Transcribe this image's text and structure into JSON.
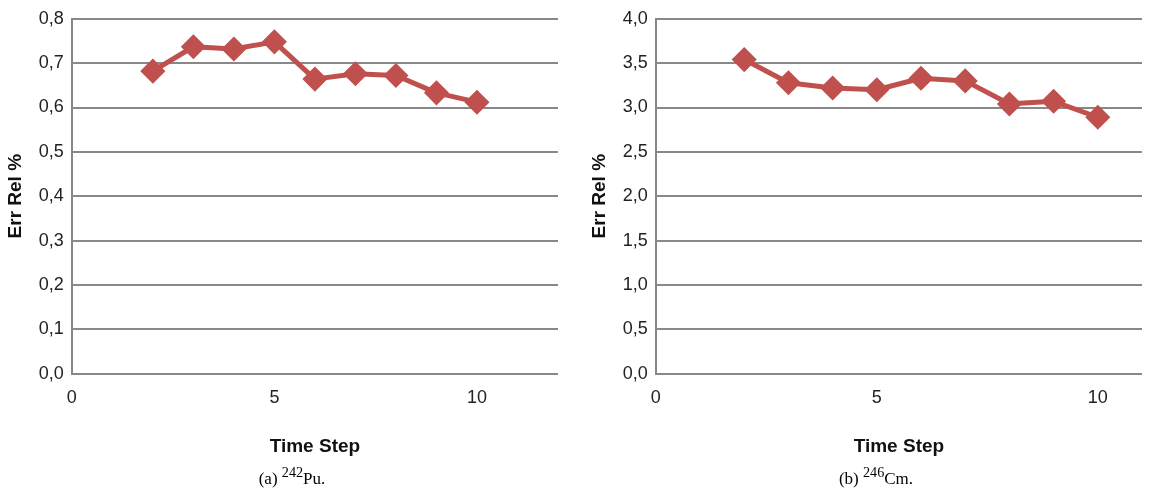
{
  "chart_data": [
    {
      "type": "line",
      "xlabel": "Time Step",
      "ylabel": "Err Rel %",
      "x": [
        2,
        3,
        4,
        5,
        6,
        7,
        8,
        9,
        10
      ],
      "series": [
        {
          "color": "#c0504d",
          "values": [
            0.682,
            0.737,
            0.732,
            0.748,
            0.664,
            0.676,
            0.672,
            0.633,
            0.612
          ]
        }
      ],
      "xlim": [
        0,
        12
      ],
      "xticks": [
        0,
        5,
        10
      ],
      "ylim": [
        0,
        0.8
      ],
      "yticks": [
        {
          "value": 0,
          "label": "0,0"
        },
        {
          "value": 0.1,
          "label": "0,1"
        },
        {
          "value": 0.2,
          "label": "0,2"
        },
        {
          "value": 0.3,
          "label": "0,3"
        },
        {
          "value": 0.4,
          "label": "0,4"
        },
        {
          "value": 0.5,
          "label": "0,5"
        },
        {
          "value": 0.6,
          "label": "0,6"
        },
        {
          "value": 0.7,
          "label": "0,7"
        },
        {
          "value": 0.8,
          "label": "0,8"
        }
      ],
      "grid": "y",
      "marker": "diamond",
      "line_style": "solid",
      "annotations": [
        "(a) $^{242}$Pu."
      ]
    },
    {
      "type": "line",
      "xlabel": "Time Step",
      "ylabel": "Err Rel %",
      "x": [
        2,
        3,
        4,
        5,
        6,
        7,
        8,
        9,
        10
      ],
      "series": [
        {
          "color": "#c0504d",
          "values": [
            3.54,
            3.28,
            3.22,
            3.2,
            3.33,
            3.3,
            3.04,
            3.07,
            2.89
          ]
        }
      ],
      "xlim": [
        0,
        11
      ],
      "xticks": [
        0,
        5,
        10
      ],
      "ylim": [
        0,
        4
      ],
      "yticks": [
        {
          "value": 0,
          "label": "0,0"
        },
        {
          "value": 0.5,
          "label": "0,5"
        },
        {
          "value": 1,
          "label": "1,0"
        },
        {
          "value": 1.5,
          "label": "1,5"
        },
        {
          "value": 2,
          "label": "2,0"
        },
        {
          "value": 2.5,
          "label": "2,5"
        },
        {
          "value": 3,
          "label": "3,0"
        },
        {
          "value": 3.5,
          "label": "3,5"
        },
        {
          "value": 4,
          "label": "4,0"
        }
      ],
      "grid": "y",
      "marker": "diamond",
      "line_style": "solid",
      "annotations": [
        "(b) $^{246}$Cm."
      ]
    }
  ]
}
